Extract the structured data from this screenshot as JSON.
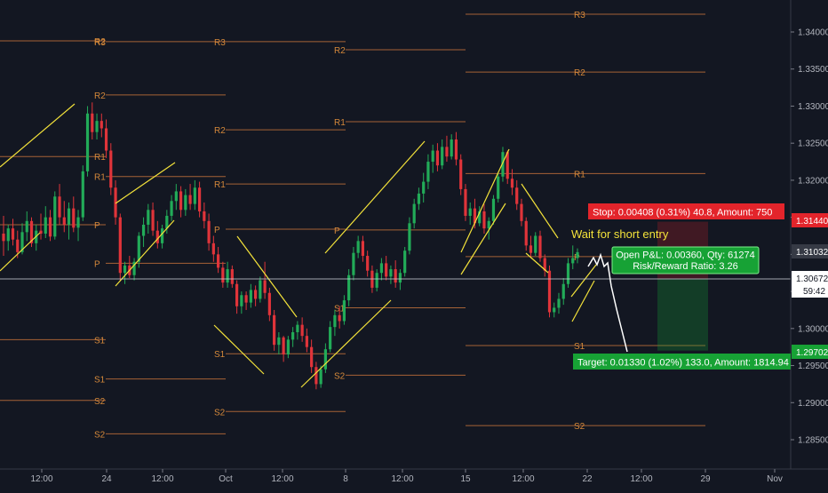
{
  "chart_data": {
    "type": "candlestick",
    "instrument_note": "",
    "y_axis": {
      "ticks": [
        "1.34000",
        "1.33500",
        "1.33000",
        "1.32500",
        "1.32000",
        "1.31500",
        "1.31000",
        "1.30500",
        "1.30000",
        "1.29500",
        "1.29000",
        "1.28500"
      ],
      "range": [
        1.2825,
        1.3435
      ]
    },
    "x_axis": {
      "ticks": [
        "12:00",
        "24",
        "12:00",
        "Oct",
        "12:00",
        "8",
        "12:00",
        "15",
        "12:00",
        "22",
        "12:00",
        "29",
        "Nov"
      ]
    },
    "price_labels": {
      "stop_price": "1.31440",
      "current_price": "1.31032",
      "entry_price": "1.30672",
      "countdown": "59:42",
      "target_price": "1.29702"
    },
    "pivot_labels": [
      "R3",
      "R2",
      "R1",
      "P",
      "S1",
      "S2"
    ],
    "pivot_periods": [
      {
        "R2": 1.3388,
        "R1": 1.3232,
        "P": 1.314,
        "S1": 1.2985,
        "S2": 1.2903
      },
      {
        "R3": 1.3387,
        "R2": 1.3315,
        "R1": 1.3205,
        "P": 1.3088,
        "S1": 1.2932,
        "S2": 1.2858
      },
      {
        "R3": 1.3387,
        "R2": 1.3268,
        "R1": 1.3195,
        "P": 1.3134,
        "S1": 1.2966,
        "S2": 1.2888
      },
      {
        "R2": 1.3376,
        "R1": 1.3279,
        "P": 1.3133,
        "S1": 1.3028,
        "S2": 1.2937
      },
      {
        "R3": 1.3424,
        "R2": 1.3346,
        "R1": 1.3209,
        "P": 1.3097,
        "S1": 1.2977,
        "S2": 1.2869
      }
    ],
    "position": {
      "stop_label": "Stop: 0.00408 (0.31%) 40.8, Amount: 750",
      "pnl_label": "Open P&L: 0.00360, Qty: 61274",
      "rr_label": "Risk/Reward Ratio: 3.26",
      "target_label": "Target: 0.01330 (1.02%) 133.0, Amount: 1814.94",
      "entry": 1.30672,
      "stop": 1.3144,
      "target": 1.29702
    },
    "annotation": "Wait for short entry",
    "candles": [
      [
        0,
        1.3128,
        1.3152,
        1.3098,
        1.3118
      ],
      [
        1,
        1.3118,
        1.314,
        1.3105,
        1.3135
      ],
      [
        2,
        1.3135,
        1.3148,
        1.3112,
        1.312
      ],
      [
        3,
        1.312,
        1.3132,
        1.3095,
        1.3103
      ],
      [
        4,
        1.3103,
        1.3142,
        1.31,
        1.313
      ],
      [
        5,
        1.313,
        1.3158,
        1.3118,
        1.3145
      ],
      [
        6,
        1.3145,
        1.315,
        1.311,
        1.3115
      ],
      [
        7,
        1.3115,
        1.314,
        1.3105,
        1.3132
      ],
      [
        8,
        1.3132,
        1.3155,
        1.312,
        1.3128
      ],
      [
        9,
        1.3128,
        1.3165,
        1.3122,
        1.315
      ],
      [
        10,
        1.315,
        1.316,
        1.3118,
        1.3124
      ],
      [
        11,
        1.3124,
        1.3185,
        1.312,
        1.3178
      ],
      [
        12,
        1.3178,
        1.3195,
        1.314,
        1.315
      ],
      [
        13,
        1.315,
        1.3172,
        1.313,
        1.314
      ],
      [
        14,
        1.314,
        1.317,
        1.312,
        1.3162
      ],
      [
        15,
        1.3162,
        1.3178,
        1.313,
        1.3136
      ],
      [
        16,
        1.3136,
        1.316,
        1.3118,
        1.315
      ],
      [
        17,
        1.315,
        1.322,
        1.3145,
        1.3212
      ],
      [
        18,
        1.3212,
        1.33,
        1.3205,
        1.329
      ],
      [
        19,
        1.329,
        1.3305,
        1.3255,
        1.3265
      ],
      [
        20,
        1.3265,
        1.329,
        1.3255,
        1.328
      ],
      [
        21,
        1.328,
        1.329,
        1.3258,
        1.327
      ],
      [
        22,
        1.327,
        1.3282,
        1.323,
        1.324
      ],
      [
        23,
        1.324,
        1.325,
        1.318,
        1.319
      ],
      [
        24,
        1.319,
        1.32,
        1.314,
        1.315
      ],
      [
        25,
        1.315,
        1.3155,
        1.3065,
        1.3075
      ],
      [
        26,
        1.3075,
        1.309,
        1.306,
        1.3085
      ],
      [
        27,
        1.3085,
        1.3098,
        1.3068,
        1.3072
      ],
      [
        28,
        1.3072,
        1.3095,
        1.3065,
        1.309
      ],
      [
        29,
        1.309,
        1.313,
        1.3082,
        1.3125
      ],
      [
        30,
        1.3125,
        1.315,
        1.311,
        1.314
      ],
      [
        31,
        1.314,
        1.3168,
        1.3128,
        1.316
      ],
      [
        32,
        1.316,
        1.317,
        1.3125,
        1.3132
      ],
      [
        33,
        1.3132,
        1.3145,
        1.3108,
        1.3115
      ],
      [
        34,
        1.3115,
        1.314,
        1.3108,
        1.3135
      ],
      [
        35,
        1.3135,
        1.316,
        1.3128,
        1.3152
      ],
      [
        36,
        1.3152,
        1.318,
        1.3145,
        1.3172
      ],
      [
        37,
        1.3172,
        1.3195,
        1.316,
        1.3185
      ],
      [
        38,
        1.3185,
        1.3192,
        1.315,
        1.316
      ],
      [
        39,
        1.316,
        1.3188,
        1.3152,
        1.318
      ],
      [
        40,
        1.318,
        1.3195,
        1.316,
        1.3168
      ],
      [
        41,
        1.3168,
        1.32,
        1.316,
        1.319
      ],
      [
        42,
        1.319,
        1.3198,
        1.315,
        1.3158
      ],
      [
        43,
        1.3158,
        1.317,
        1.3135,
        1.3145
      ],
      [
        44,
        1.3145,
        1.3155,
        1.3105,
        1.3115
      ],
      [
        45,
        1.3115,
        1.3125,
        1.309,
        1.31
      ],
      [
        46,
        1.31,
        1.311,
        1.3075,
        1.3082
      ],
      [
        47,
        1.3082,
        1.309,
        1.3055,
        1.3062
      ],
      [
        48,
        1.3062,
        1.309,
        1.3055,
        1.308
      ],
      [
        49,
        1.308,
        1.3085,
        1.3055,
        1.306
      ],
      [
        50,
        1.306,
        1.3065,
        1.302,
        1.303
      ],
      [
        51,
        1.303,
        1.305,
        1.302,
        1.3045
      ],
      [
        52,
        1.3045,
        1.305,
        1.3025,
        1.3035
      ],
      [
        53,
        1.3035,
        1.306,
        1.3028,
        1.3052
      ],
      [
        54,
        1.3052,
        1.3058,
        1.303,
        1.304
      ],
      [
        55,
        1.304,
        1.307,
        1.3035,
        1.3065
      ],
      [
        56,
        1.3065,
        1.309,
        1.304,
        1.3048
      ],
      [
        57,
        1.3048,
        1.3055,
        1.301,
        1.3018
      ],
      [
        58,
        1.3018,
        1.3025,
        1.297,
        1.2978
      ],
      [
        59,
        1.2978,
        1.2995,
        1.2965,
        1.2988
      ],
      [
        60,
        1.2988,
        1.299,
        1.2955,
        1.2965
      ],
      [
        61,
        1.2965,
        1.299,
        1.296,
        1.2985
      ],
      [
        62,
        1.2985,
        1.3002,
        1.2975,
        1.2995
      ],
      [
        63,
        1.2995,
        1.301,
        1.2985,
        1.3005
      ],
      [
        64,
        1.3005,
        1.3015,
        1.2982,
        1.299
      ],
      [
        65,
        1.299,
        1.3,
        1.2968,
        1.2975
      ],
      [
        66,
        1.2975,
        1.2985,
        1.294,
        1.2948
      ],
      [
        67,
        1.2948,
        1.2955,
        1.2918,
        1.2925
      ],
      [
        68,
        1.2925,
        1.295,
        1.292,
        1.2945
      ],
      [
        69,
        1.2945,
        1.298,
        1.294,
        1.2972
      ],
      [
        70,
        1.2972,
        1.301,
        1.2968,
        1.3002
      ],
      [
        71,
        1.3002,
        1.3025,
        1.299,
        1.3018
      ],
      [
        72,
        1.3018,
        1.303,
        1.3,
        1.301
      ],
      [
        73,
        1.301,
        1.3045,
        1.3005,
        1.3038
      ],
      [
        74,
        1.3038,
        1.308,
        1.303,
        1.3072
      ],
      [
        75,
        1.3072,
        1.311,
        1.3065,
        1.3102
      ],
      [
        76,
        1.3102,
        1.3125,
        1.3095,
        1.3118
      ],
      [
        77,
        1.3118,
        1.3125,
        1.309,
        1.3098
      ],
      [
        78,
        1.3098,
        1.3105,
        1.307,
        1.3078
      ],
      [
        79,
        1.3078,
        1.3085,
        1.3048,
        1.3055
      ],
      [
        80,
        1.3055,
        1.308,
        1.305,
        1.3075
      ],
      [
        81,
        1.3075,
        1.3095,
        1.3065,
        1.3088
      ],
      [
        82,
        1.3088,
        1.3098,
        1.3065,
        1.307
      ],
      [
        83,
        1.307,
        1.3085,
        1.306,
        1.308
      ],
      [
        84,
        1.308,
        1.3092,
        1.3055,
        1.3062
      ],
      [
        85,
        1.3062,
        1.308,
        1.3052,
        1.3075
      ],
      [
        86,
        1.3075,
        1.311,
        1.307,
        1.3105
      ],
      [
        87,
        1.3105,
        1.315,
        1.31,
        1.3142
      ],
      [
        88,
        1.3142,
        1.3175,
        1.3135,
        1.3168
      ],
      [
        89,
        1.3168,
        1.319,
        1.316,
        1.3182
      ],
      [
        90,
        1.3182,
        1.321,
        1.317,
        1.3198
      ],
      [
        91,
        1.3198,
        1.3235,
        1.3188,
        1.3225
      ],
      [
        92,
        1.3225,
        1.3248,
        1.321,
        1.324
      ],
      [
        93,
        1.324,
        1.325,
        1.3212,
        1.322
      ],
      [
        94,
        1.322,
        1.3255,
        1.3215,
        1.3245
      ],
      [
        95,
        1.3245,
        1.326,
        1.3225,
        1.3232
      ],
      [
        96,
        1.3232,
        1.3262,
        1.3228,
        1.3255
      ],
      [
        97,
        1.3255,
        1.3265,
        1.322,
        1.3228
      ],
      [
        98,
        1.3228,
        1.3235,
        1.318,
        1.3188
      ],
      [
        99,
        1.3188,
        1.3195,
        1.3145,
        1.3152
      ],
      [
        100,
        1.3152,
        1.317,
        1.314,
        1.3162
      ],
      [
        101,
        1.3162,
        1.3175,
        1.3135,
        1.3142
      ],
      [
        102,
        1.3142,
        1.3165,
        1.3138,
        1.3158
      ],
      [
        103,
        1.3158,
        1.3168,
        1.3128,
        1.3135
      ],
      [
        104,
        1.3135,
        1.315,
        1.312,
        1.3145
      ],
      [
        105,
        1.3145,
        1.318,
        1.314,
        1.3175
      ],
      [
        106,
        1.3175,
        1.321,
        1.317,
        1.3205
      ],
      [
        107,
        1.3205,
        1.3245,
        1.3198,
        1.3238
      ],
      [
        108,
        1.3238,
        1.324,
        1.3195,
        1.3202
      ],
      [
        109,
        1.3202,
        1.3215,
        1.318,
        1.319
      ],
      [
        110,
        1.319,
        1.32,
        1.316,
        1.3168
      ],
      [
        111,
        1.3168,
        1.3175,
        1.3138,
        1.3145
      ],
      [
        112,
        1.3145,
        1.315,
        1.3105,
        1.3112
      ],
      [
        113,
        1.3112,
        1.3125,
        1.3095,
        1.3102
      ],
      [
        114,
        1.3102,
        1.313,
        1.3098,
        1.3125
      ],
      [
        115,
        1.3125,
        1.3132,
        1.309,
        1.3095
      ],
      [
        116,
        1.3095,
        1.31,
        1.307,
        1.3078
      ],
      [
        117,
        1.3078,
        1.3085,
        1.3015,
        1.3022
      ],
      [
        118,
        1.3022,
        1.3035,
        1.3015,
        1.3028
      ],
      [
        119,
        1.3028,
        1.3048,
        1.302,
        1.304
      ],
      [
        120,
        1.304,
        1.3068,
        1.3032,
        1.306
      ],
      [
        121,
        1.306,
        1.3095,
        1.3055,
        1.3088
      ],
      [
        122,
        1.3088,
        1.3112,
        1.308,
        1.3095
      ],
      [
        123,
        1.3095,
        1.3108,
        1.3088,
        1.3103
      ]
    ]
  }
}
